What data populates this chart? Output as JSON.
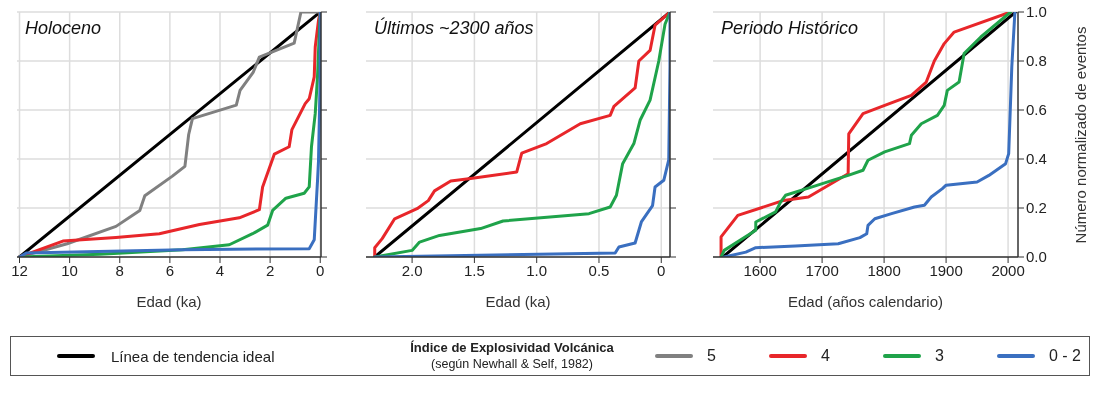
{
  "chart_data": [
    {
      "type": "line",
      "title": "Holoceno",
      "xlabel": "Edad (ka)",
      "xlim": [
        12.1,
        -0.03
      ],
      "xticks": [
        12,
        10,
        8,
        6,
        4,
        2,
        0
      ],
      "ylim": [
        0,
        1
      ],
      "yticks": [
        0,
        0.2,
        0.4,
        0.6,
        0.8,
        1
      ],
      "tick_labels": "x",
      "grid": true,
      "legend": "bottom",
      "legend_title": "Índice de Explosividad Volcánica\n(según Newhall & Self, 1982)",
      "series": [
        {
          "name": "Línea de tendencia ideal",
          "color": "#000000",
          "x": [
            12,
            0
          ],
          "values": [
            0,
            1
          ]
        },
        {
          "name": "5",
          "color": "#808080",
          "x": [
            12,
            10.1,
            8.15,
            7.2,
            7.0,
            5.9,
            5.4,
            5.25,
            5.1,
            3.35,
            3.2,
            2.67,
            2.43,
            1.04,
            0.77,
            0
          ],
          "values": [
            0,
            0.054,
            0.125,
            0.19,
            0.25,
            0.33,
            0.37,
            0.5,
            0.565,
            0.62,
            0.68,
            0.755,
            0.816,
            0.873,
            1,
            1
          ]
        },
        {
          "name": "4",
          "color": "#e8262a",
          "x": [
            12,
            10.27,
            8.15,
            6.42,
            4.82,
            3.23,
            2.43,
            2.3,
            1.83,
            1.24,
            1.13,
            0.6,
            0.44,
            0.24,
            0.2,
            0.07,
            0
          ],
          "values": [
            0,
            0.065,
            0.08,
            0.095,
            0.133,
            0.16,
            0.193,
            0.286,
            0.42,
            0.45,
            0.52,
            0.626,
            0.646,
            0.735,
            0.857,
            0.966,
            1
          ]
        },
        {
          "name": "3",
          "color": "#1fa34a",
          "x": [
            12,
            8.8,
            5.49,
            3.63,
            2.7,
            2.1,
            1.9,
            1.37,
            0.64,
            0.44,
            0.35,
            0.2,
            0.11,
            0.04,
            0
          ],
          "values": [
            0,
            0.011,
            0.03,
            0.05,
            0.095,
            0.13,
            0.19,
            0.24,
            0.26,
            0.286,
            0.45,
            0.585,
            0.735,
            0.91,
            1
          ]
        },
        {
          "name": "0 - 2",
          "color": "#3a6fc0",
          "x": [
            12,
            11.73,
            5.49,
            0.44,
            0.24,
            0.11,
            0.07,
            0.01,
            0
          ],
          "values": [
            0,
            0.016,
            0.03,
            0.034,
            0.07,
            0.31,
            0.39,
            0.7,
            1
          ]
        }
      ]
    },
    {
      "type": "line",
      "title": "Últimos ~2300 años",
      "xlabel": "Edad (ka)",
      "xlim": [
        2.37,
        -0.07
      ],
      "xticks": [
        {
          "value": 2,
          "label": "2.0"
        },
        {
          "value": 1.5,
          "label": "1.5"
        },
        {
          "value": 1,
          "label": "1.0"
        },
        {
          "value": 0.5,
          "label": "0.5"
        },
        0
      ],
      "ylim": [
        0,
        1
      ],
      "yticks": [
        0,
        0.2,
        0.4,
        0.6,
        0.8,
        1
      ],
      "tick_labels": "x",
      "grid": true,
      "series": [
        {
          "color": "#000000",
          "x": [
            2.3,
            -0.07
          ],
          "values": [
            0,
            1
          ]
        },
        {
          "color": "#e8262a",
          "x": [
            2.3,
            2.3,
            2.24,
            2.14,
            1.96,
            1.87,
            1.82,
            1.69,
            1.53,
            1.16,
            1.12,
            0.92,
            0.65,
            0.41,
            0.38,
            0.21,
            0.18,
            0.09,
            0.05,
            -0.07
          ],
          "values": [
            0,
            0.038,
            0.075,
            0.156,
            0.197,
            0.23,
            0.27,
            0.31,
            0.32,
            0.347,
            0.424,
            0.463,
            0.544,
            0.578,
            0.615,
            0.69,
            0.8,
            0.843,
            0.946,
            1
          ]
        },
        {
          "color": "#1fa34a",
          "x": [
            2.3,
            2.0,
            1.94,
            1.78,
            1.45,
            1.27,
            0.58,
            0.41,
            0.36,
            0.31,
            0.22,
            0.17,
            0.09,
            0.02,
            -0.03,
            -0.07
          ],
          "values": [
            0,
            0.027,
            0.061,
            0.088,
            0.116,
            0.147,
            0.177,
            0.204,
            0.252,
            0.381,
            0.463,
            0.558,
            0.64,
            0.8,
            0.95,
            1
          ]
        },
        {
          "color": "#3a6fc0",
          "x": [
            2.3,
            0.37,
            0.34,
            0.21,
            0.16,
            0.07,
            0.05,
            -0.02,
            -0.06,
            -0.07,
            -0.07
          ],
          "values": [
            0,
            0.016,
            0.041,
            0.057,
            0.143,
            0.21,
            0.286,
            0.313,
            0.397,
            0.78,
            1
          ]
        }
      ]
    },
    {
      "type": "line",
      "title": "Periodo Histórico",
      "xlabel": "Edad (años calendario)",
      "ylabel": "Número normalizado de eventos",
      "xlim": [
        1524,
        2016
      ],
      "xticks": [
        1600,
        1700,
        1800,
        1900,
        2000
      ],
      "ylim": [
        0,
        1
      ],
      "yticks": [
        {
          "value": 0,
          "label": "0.0"
        },
        {
          "value": 0.2,
          "label": "0.2"
        },
        {
          "value": 0.4,
          "label": "0.4"
        },
        {
          "value": 0.6,
          "label": "0.6"
        },
        {
          "value": 0.8,
          "label": "0.8"
        },
        {
          "value": 1,
          "label": "1.0"
        }
      ],
      "grid": true,
      "series": [
        {
          "color": "#000000",
          "x": [
            1540,
            2012
          ],
          "values": [
            0,
            1
          ]
        },
        {
          "color": "#e8262a",
          "x": [
            1537,
            1537,
            1564,
            1638,
            1678,
            1742,
            1743,
            1766,
            1801,
            1844,
            1868,
            1881,
            1897,
            1913,
            2004
          ],
          "values": [
            0,
            0.082,
            0.17,
            0.231,
            0.245,
            0.34,
            0.503,
            0.585,
            0.619,
            0.66,
            0.714,
            0.8,
            0.871,
            0.918,
            1
          ]
        },
        {
          "color": "#1fa34a",
          "x": [
            1537,
            1542,
            1593,
            1593,
            1625,
            1633,
            1641,
            1684,
            1742,
            1766,
            1774,
            1801,
            1841,
            1844,
            1860,
            1886,
            1897,
            1902,
            1921,
            1929,
            1956,
            2004
          ],
          "values": [
            0,
            0.027,
            0.109,
            0.143,
            0.184,
            0.224,
            0.252,
            0.286,
            0.333,
            0.354,
            0.395,
            0.429,
            0.463,
            0.497,
            0.544,
            0.578,
            0.619,
            0.68,
            0.714,
            0.83,
            0.898,
            1
          ]
        },
        {
          "color": "#3a6fc0",
          "x": [
            1542,
            1577,
            1593,
            1657,
            1726,
            1761,
            1772,
            1774,
            1785,
            1812,
            1849,
            1865,
            1876,
            1894,
            1900,
            1950,
            1969,
            1996,
            2001,
            2006,
            2011
          ],
          "values": [
            0,
            0.02,
            0.038,
            0.045,
            0.054,
            0.079,
            0.095,
            0.129,
            0.156,
            0.177,
            0.204,
            0.211,
            0.245,
            0.279,
            0.293,
            0.306,
            0.333,
            0.381,
            0.422,
            0.776,
            1
          ]
        }
      ]
    }
  ]
}
